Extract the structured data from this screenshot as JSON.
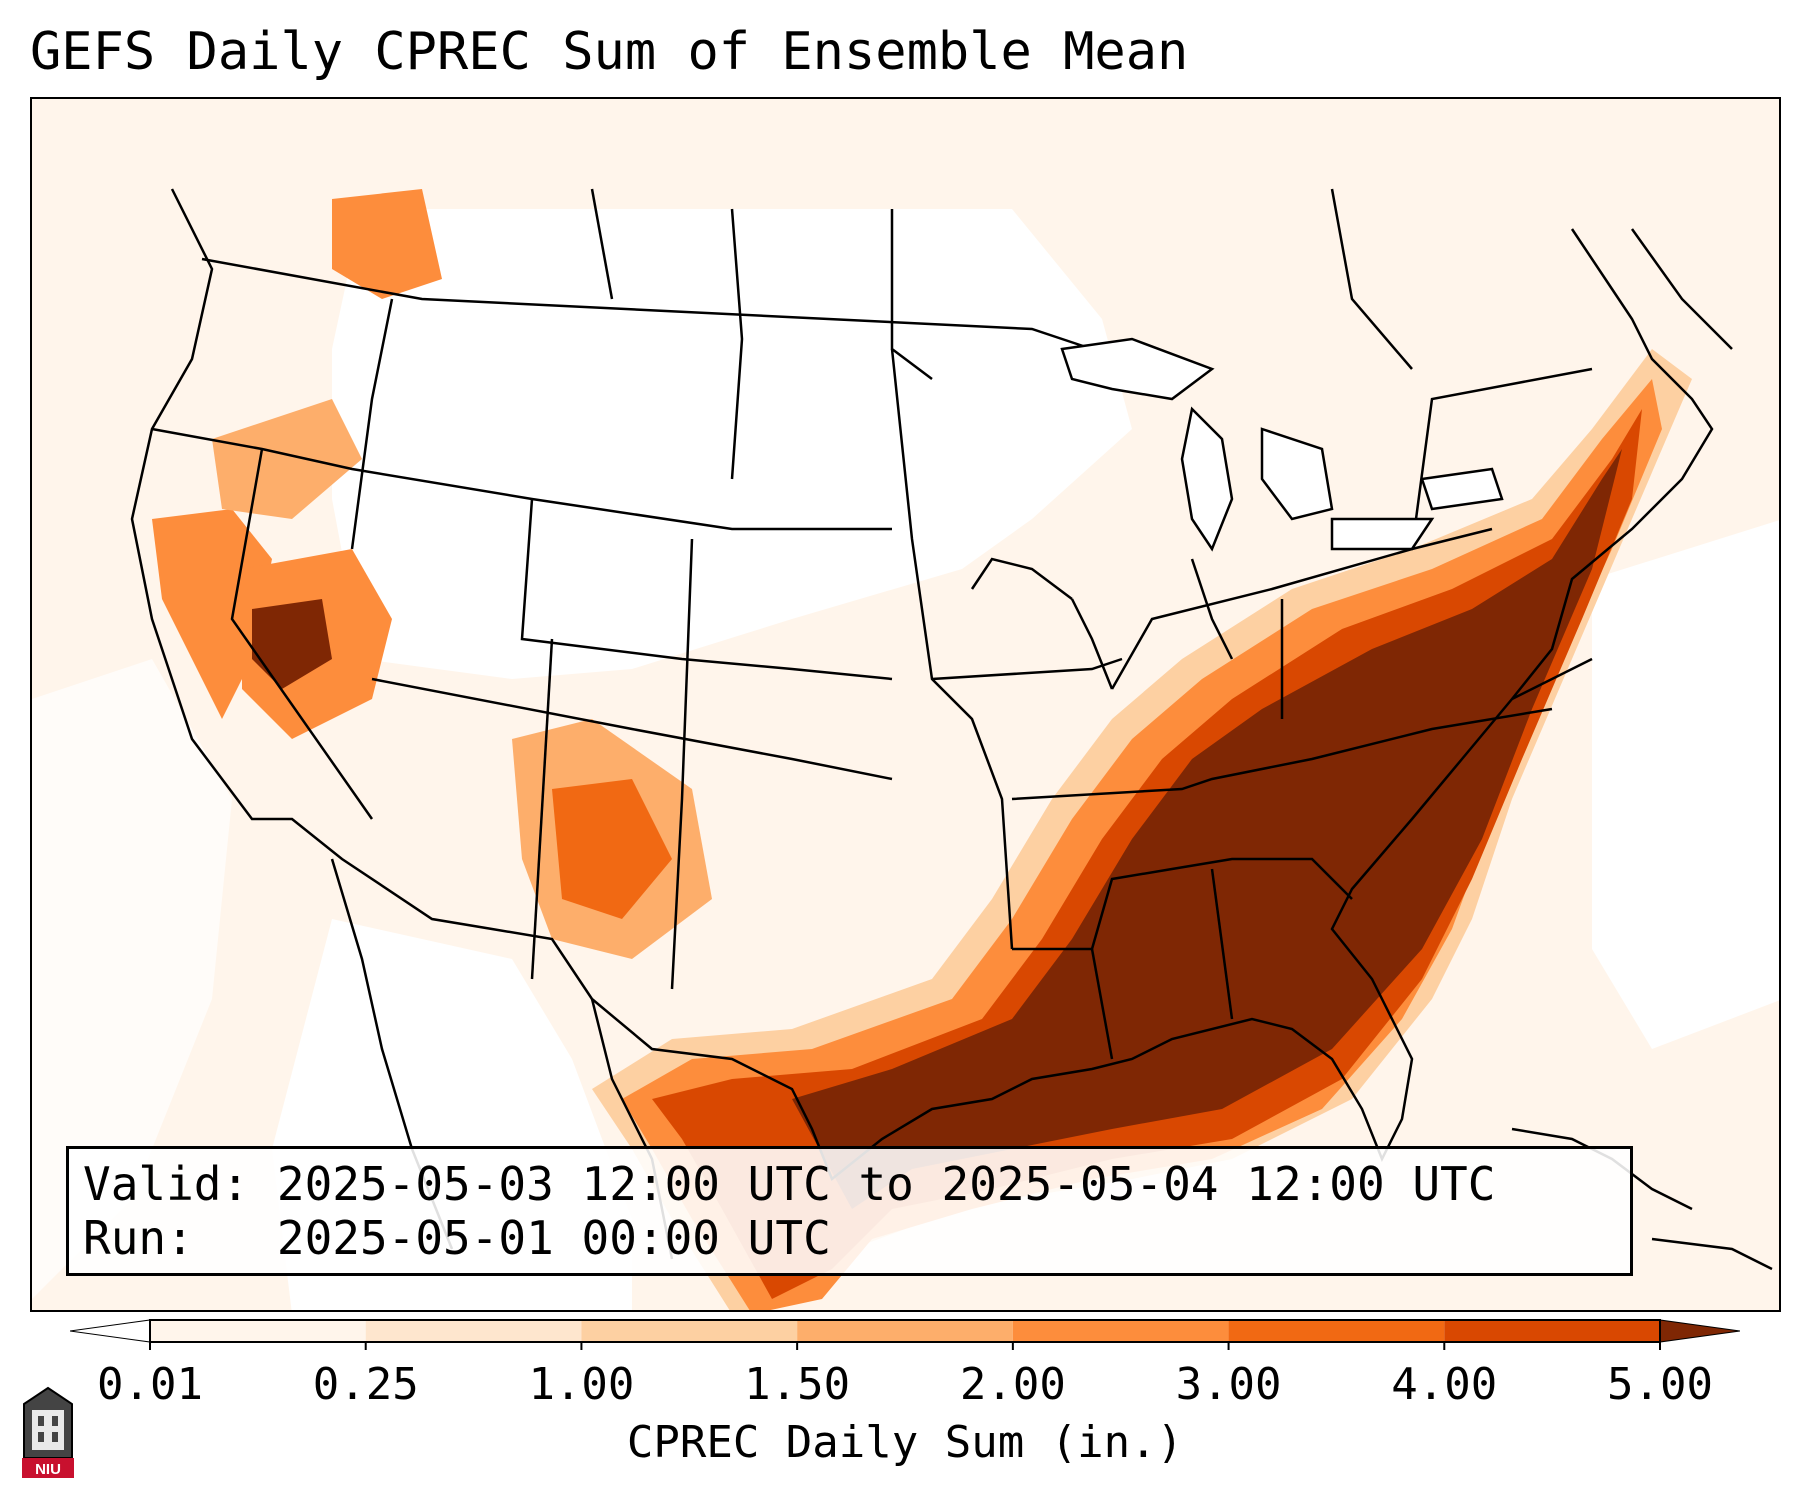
{
  "title": "GEFS Daily CPREC Sum of Ensemble Mean",
  "info": {
    "valid_label": "Valid:",
    "valid_value": "2025-05-03 12:00 UTC to 2025-05-04 12:00 UTC",
    "run_label": "Run:",
    "run_value": "2025-05-01 00:00 UTC"
  },
  "colorbar": {
    "title": "CPREC Daily Sum (in.)",
    "ticks": [
      "0.01",
      "0.25",
      "1.00",
      "1.50",
      "2.00",
      "3.00",
      "4.00",
      "5.00"
    ],
    "colors": [
      "#ffffff",
      "#fff5eb",
      "#fee6ce",
      "#fdd0a2",
      "#fdae6b",
      "#fd8d3c",
      "#f16913",
      "#d94801",
      "#a63603",
      "#7f2704"
    ],
    "under_color": "#ffffff",
    "over_color": "#7f2704"
  },
  "map": {
    "projection": "Lambert Conformal (CONUS)",
    "heavy_precip_regions": [
      "Southern Plains / Gulf Coast",
      "Lower Mississippi Valley",
      "Tennessee and Ohio Valleys",
      "Mid-Atlantic",
      "Northeast",
      "Northern Nevada",
      "New Mexico"
    ]
  },
  "logo": {
    "name": "NIU",
    "label": "NIU"
  }
}
